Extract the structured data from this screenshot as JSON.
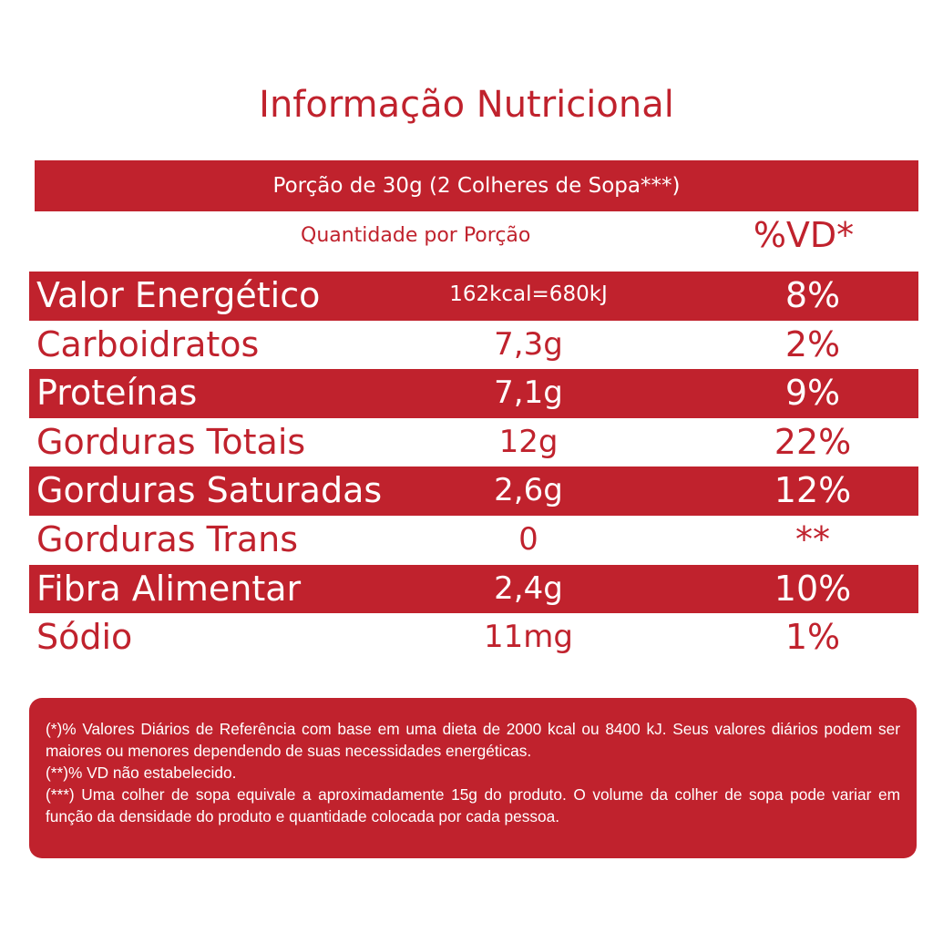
{
  "title": "Informação Nutricional",
  "portion": "Porção de 30g (2 Colheres de Sopa***)",
  "headers": {
    "quantity": "Quantidade por Porção",
    "vd": "%VD*"
  },
  "rows": [
    {
      "name": "Valor Energético",
      "amount": "162kcal=680kJ",
      "vd": "8%"
    },
    {
      "name": "Carboidratos",
      "amount": "7,3g",
      "vd": "2%"
    },
    {
      "name": "Proteínas",
      "amount": "7,1g",
      "vd": "9%"
    },
    {
      "name": "Gorduras Totais",
      "amount": "12g",
      "vd": "22%"
    },
    {
      "name": "Gorduras Saturadas",
      "amount": "2,6g",
      "vd": "12%"
    },
    {
      "name": "Gorduras Trans",
      "amount": "0",
      "vd": "**"
    },
    {
      "name": "Fibra Alimentar",
      "amount": "2,4g",
      "vd": "10%"
    },
    {
      "name": "Sódio",
      "amount": "11mg",
      "vd": "1%"
    }
  ],
  "footnotes": [
    "(*)% Valores Diários de Referência com base em uma dieta de 2000 kcal ou 8400 kJ. Seus valores diários podem ser maiores ou menores dependendo de suas necessidades energéticas.",
    "(**)% VD não estabelecido.",
    "(***) Uma colher de sopa equivale a aproximadamente 15g do produto. O volume da colher de sopa pode variar em função da densidade do produto e quantidade colocada por cada pessoa."
  ],
  "colors": {
    "brand_red": "#c0222d",
    "background": "#ffffff"
  }
}
